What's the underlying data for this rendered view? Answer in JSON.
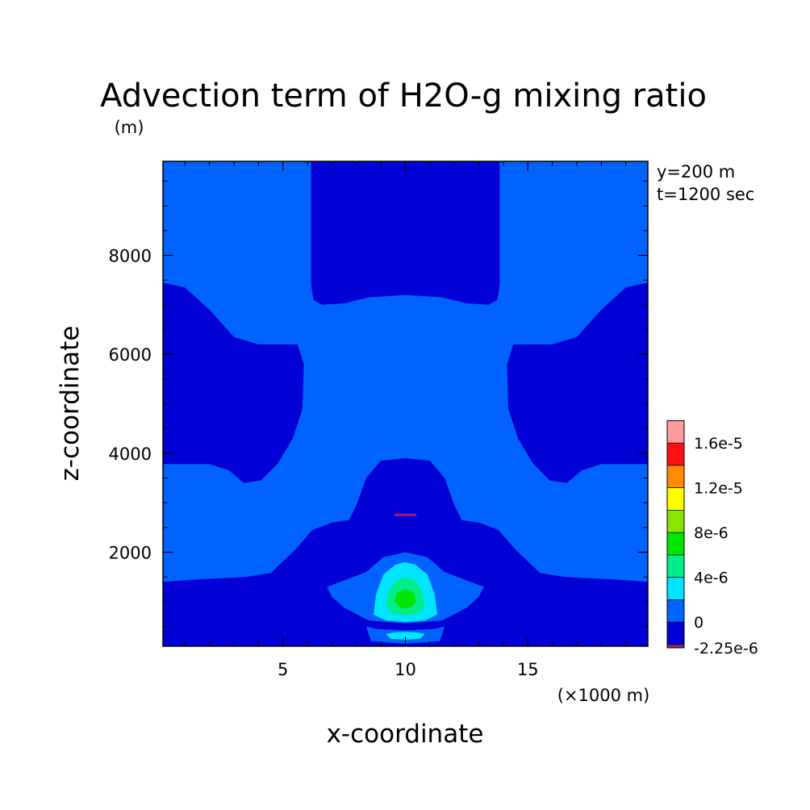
{
  "chart_data": {
    "type": "heatmap",
    "title": "Advection term of H2O-g mixing ratio",
    "subtitle": "",
    "xlabel": "x-coordinate",
    "ylabel": "z-coordinate",
    "x_unit_label": "(×1000 m)",
    "y_unit_label": "(m)",
    "annotations": [
      "y=200 m",
      "t=1200 sec"
    ],
    "xlim": [
      0.1,
      19.9
    ],
    "ylim": [
      100,
      9900
    ],
    "x_ticks": [
      5,
      10,
      15
    ],
    "x_tick_labels": [
      "5",
      "10",
      "15"
    ],
    "y_ticks": [
      2000,
      4000,
      6000,
      8000
    ],
    "y_tick_labels": [
      "2000",
      "4000",
      "6000",
      "8000"
    ],
    "colorbar": {
      "levels": [
        -2.25e-06,
        -2e-06,
        0,
        2e-06,
        4e-06,
        6e-06,
        8e-06,
        1e-05,
        1.2e-05,
        1.4e-05,
        1.6e-05,
        1.8e-05
      ],
      "colors": [
        "#9a1f7d",
        "#0000d6",
        "#0062ff",
        "#00e4ff",
        "#00ee88",
        "#00e400",
        "#88e400",
        "#ffff00",
        "#ff8c00",
        "#ff1010",
        "#ff9d9d"
      ],
      "tick_labels": [
        "-2.25e-6",
        "0",
        "4e-6",
        "8e-6",
        "1.2e-5",
        "1.6e-5"
      ],
      "tick_values": [
        -2.25e-06,
        0,
        4e-06,
        8e-06,
        1.2e-05,
        1.6e-05
      ]
    },
    "background_value": 1e-06,
    "regions": [
      {
        "value": -1e-06,
        "polygon": [
          [
            6.15,
            9900
          ],
          [
            6.15,
            7400
          ],
          [
            6.25,
            7100
          ],
          [
            6.6,
            7000
          ],
          [
            7.5,
            7030
          ],
          [
            8.5,
            7150
          ],
          [
            10,
            7200
          ],
          [
            11.5,
            7150
          ],
          [
            12.5,
            7030
          ],
          [
            13.4,
            7000
          ],
          [
            13.75,
            7100
          ],
          [
            13.85,
            7400
          ],
          [
            13.85,
            9900
          ]
        ]
      },
      {
        "value": -1e-06,
        "polygon": [
          [
            0.1,
            7450
          ],
          [
            1.0,
            7350
          ],
          [
            2.0,
            6900
          ],
          [
            3.0,
            6350
          ],
          [
            4.0,
            6200
          ],
          [
            5.6,
            6200
          ],
          [
            5.85,
            5800
          ],
          [
            5.8,
            4900
          ],
          [
            5.4,
            4300
          ],
          [
            4.8,
            3800
          ],
          [
            4.1,
            3450
          ],
          [
            3.4,
            3400
          ],
          [
            2.8,
            3650
          ],
          [
            2.0,
            3780
          ],
          [
            0.1,
            3780
          ]
        ]
      },
      {
        "value": -1e-06,
        "polygon": [
          [
            19.9,
            7450
          ],
          [
            19.0,
            7350
          ],
          [
            18.0,
            6900
          ],
          [
            17.0,
            6350
          ],
          [
            16.0,
            6200
          ],
          [
            14.4,
            6200
          ],
          [
            14.15,
            5800
          ],
          [
            14.2,
            4900
          ],
          [
            14.6,
            4300
          ],
          [
            15.2,
            3800
          ],
          [
            15.9,
            3450
          ],
          [
            16.6,
            3400
          ],
          [
            17.2,
            3650
          ],
          [
            18.0,
            3780
          ],
          [
            19.9,
            3780
          ]
        ]
      },
      {
        "value": -1e-06,
        "polygon": [
          [
            0.1,
            100
          ],
          [
            0.1,
            1400
          ],
          [
            1.5,
            1450
          ],
          [
            3.5,
            1500
          ],
          [
            4.5,
            1580
          ],
          [
            5.5,
            2050
          ],
          [
            6.2,
            2450
          ],
          [
            7.0,
            2600
          ],
          [
            7.7,
            2650
          ],
          [
            8.0,
            2950
          ],
          [
            8.4,
            3500
          ],
          [
            9.0,
            3850
          ],
          [
            10,
            3900
          ],
          [
            11.0,
            3850
          ],
          [
            11.6,
            3500
          ],
          [
            12.0,
            2950
          ],
          [
            12.3,
            2650
          ],
          [
            13.0,
            2600
          ],
          [
            13.8,
            2450
          ],
          [
            14.5,
            2050
          ],
          [
            15.5,
            1580
          ],
          [
            16.5,
            1500
          ],
          [
            18.5,
            1450
          ],
          [
            19.9,
            1400
          ],
          [
            19.9,
            100
          ]
        ]
      },
      {
        "value": 1e-06,
        "polygon": [
          [
            6.8,
            1300
          ],
          [
            7.0,
            1100
          ],
          [
            7.5,
            880
          ],
          [
            8.5,
            620
          ],
          [
            10,
            560
          ],
          [
            11.5,
            620
          ],
          [
            12.5,
            880
          ],
          [
            13.0,
            1100
          ],
          [
            13.2,
            1300
          ],
          [
            12.4,
            1450
          ],
          [
            11.6,
            1600
          ],
          [
            10.9,
            1900
          ],
          [
            10,
            2000
          ],
          [
            9.1,
            1900
          ],
          [
            8.4,
            1600
          ],
          [
            7.6,
            1450
          ]
        ]
      },
      {
        "value": 1e-06,
        "polygon": [
          [
            8.4,
            500
          ],
          [
            8.6,
            200
          ],
          [
            10,
            150
          ],
          [
            11.4,
            200
          ],
          [
            11.6,
            500
          ],
          [
            11.2,
            450
          ],
          [
            10,
            420
          ],
          [
            8.8,
            450
          ]
        ]
      },
      {
        "value": 3e-06,
        "polygon": [
          [
            8.7,
            740
          ],
          [
            8.8,
            1150
          ],
          [
            9.1,
            1550
          ],
          [
            9.6,
            1750
          ],
          [
            10,
            1800
          ],
          [
            10.4,
            1750
          ],
          [
            10.9,
            1550
          ],
          [
            11.2,
            1150
          ],
          [
            11.3,
            740
          ],
          [
            10.8,
            620
          ],
          [
            10,
            590
          ],
          [
            9.2,
            620
          ]
        ]
      },
      {
        "value": 3e-06,
        "polygon": [
          [
            9.2,
            350
          ],
          [
            9.4,
            250
          ],
          [
            10,
            230
          ],
          [
            10.6,
            250
          ],
          [
            10.8,
            350
          ],
          [
            10.4,
            380
          ],
          [
            10,
            390
          ],
          [
            9.6,
            380
          ]
        ]
      },
      {
        "value": 5e-06,
        "polygon": [
          [
            9.2,
            900
          ],
          [
            9.3,
            1200
          ],
          [
            9.6,
            1430
          ],
          [
            10,
            1500
          ],
          [
            10.4,
            1430
          ],
          [
            10.7,
            1200
          ],
          [
            10.8,
            900
          ],
          [
            10.5,
            760
          ],
          [
            10,
            720
          ],
          [
            9.5,
            760
          ]
        ]
      },
      {
        "value": 7e-06,
        "polygon": [
          [
            9.55,
            1000
          ],
          [
            9.65,
            1180
          ],
          [
            10,
            1260
          ],
          [
            10.35,
            1180
          ],
          [
            10.45,
            1000
          ],
          [
            10.2,
            880
          ],
          [
            10,
            860
          ],
          [
            9.8,
            880
          ]
        ]
      },
      {
        "value": -2.1e-06,
        "polygon": [
          [
            9.55,
            2730
          ],
          [
            10.45,
            2730
          ],
          [
            10.45,
            2780
          ],
          [
            9.55,
            2780
          ]
        ]
      }
    ]
  }
}
